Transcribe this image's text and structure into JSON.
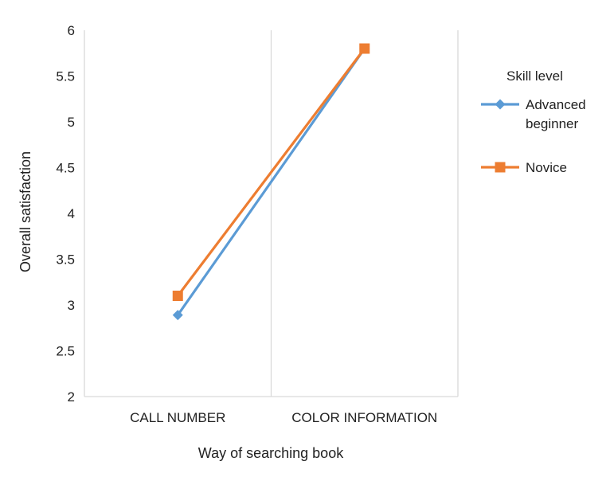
{
  "chart_data": {
    "type": "line",
    "categories": [
      "CALL NUMBER",
      "COLOR INFORMATION"
    ],
    "xlabel": "Way of searching book",
    "ylabel": "Overall satisfaction",
    "ylim": [
      2,
      6
    ],
    "yticks": [
      "2",
      "2.5",
      "3",
      "3.5",
      "4",
      "4.5",
      "5",
      "5.5",
      "6"
    ],
    "grid": "vertical",
    "legend": {
      "title": "Skill level",
      "placement": "right"
    },
    "series": [
      {
        "name_lines": [
          "Advanced",
          "beginner"
        ],
        "values": [
          2.89,
          5.8
        ],
        "color": "#5b9bd5",
        "marker": "diamond"
      },
      {
        "name_lines": [
          "Novice"
        ],
        "values": [
          3.1,
          5.8
        ],
        "color": "#ed7d31",
        "marker": "square"
      }
    ]
  }
}
